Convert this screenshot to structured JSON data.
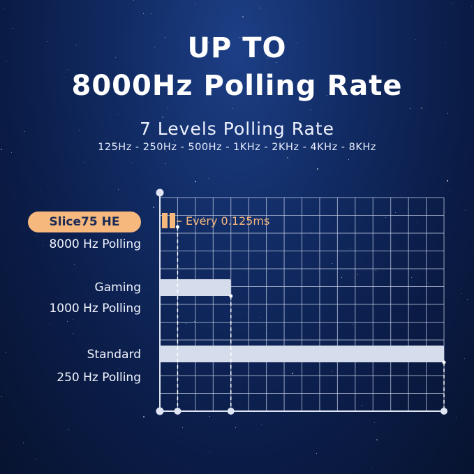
{
  "headline": {
    "line1": "UP TO",
    "line2": "8000Hz Polling Rate"
  },
  "subheadline": "7 Levels Polling Rate",
  "levels_text": "125Hz - 250Hz - 500Hz - 1KHz - 2KHz - 4KHz - 8KHz",
  "rows": [
    {
      "badge": "Slice75 HE",
      "polling": "8000 Hz Polling",
      "interval_ms": 0.125
    },
    {
      "name": "Gaming",
      "polling": "1000 Hz Polling",
      "interval_ms": 1
    },
    {
      "name": "Standard",
      "polling": "250 Hz Polling",
      "interval_ms": 4
    }
  ],
  "annotation": "Every 0.125ms",
  "colors": {
    "accent": "#f6b87d",
    "bar": "#d5dcec",
    "grid": "#c7d0e6"
  }
}
